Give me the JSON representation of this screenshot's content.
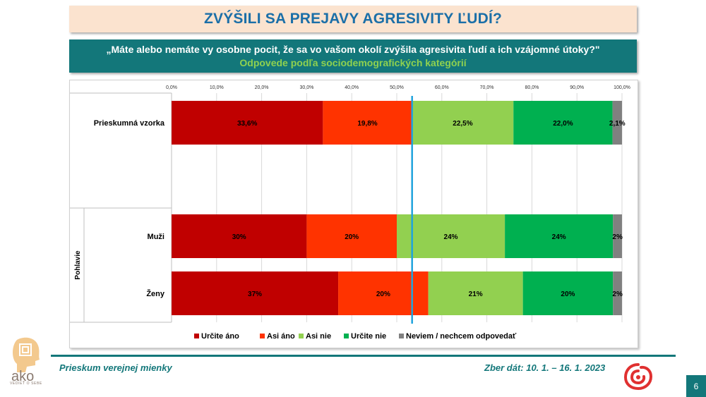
{
  "header": {
    "title": "ZVÝŠILI SA PREJAVY AGRESIVITY ĽUDÍ?",
    "question": "„Máte alebo nemáte vy osobne pocit, že sa vo vašom okolí zvýšila agresivita ľudí a ich vzájomné útoky?\"",
    "subtitle": "Odpovede podľa sociodemografických kategórií"
  },
  "chart_data": {
    "type": "bar",
    "orientation": "horizontal",
    "stacked": true,
    "xlim": [
      0,
      100
    ],
    "x_ticks": [
      "0,0%",
      "10,0%",
      "20,0%",
      "30,0%",
      "40,0%",
      "50,0%",
      "60,0%",
      "70,0%",
      "80,0%",
      "90,0%",
      "100,0%"
    ],
    "grid": true,
    "reference_line_at": 53.4,
    "group_label": "Pohlavie",
    "categories": [
      "Prieskumná vzorka",
      "Muži",
      "Ženy"
    ],
    "series": [
      {
        "name": "Určite áno",
        "color": "#c00000",
        "values": [
          33.6,
          30,
          37
        ],
        "labels": [
          "33,6%",
          "30%",
          "37%"
        ]
      },
      {
        "name": "Asi áno",
        "color": "#ff3300",
        "values": [
          19.8,
          20,
          20
        ],
        "labels": [
          "19,8%",
          "20%",
          "20%"
        ]
      },
      {
        "name": "Asi nie",
        "color": "#92d050",
        "values": [
          22.5,
          24,
          21
        ],
        "labels": [
          "22,5%",
          "24%",
          "21%"
        ]
      },
      {
        "name": "Určite nie",
        "color": "#00b050",
        "values": [
          22.0,
          24,
          20
        ],
        "labels": [
          "22,0%",
          "24%",
          "20%"
        ]
      },
      {
        "name": "Neviem / nechcem odpovedať",
        "color": "#808080",
        "values": [
          2.1,
          2,
          2
        ],
        "labels": [
          "2,1%",
          "2%",
          "2%"
        ]
      }
    ],
    "legend_position": "bottom"
  },
  "footer": {
    "left": "Prieskum verejnej mienky",
    "right": "Zber dát: 10. 1. – 16. 1. 2023",
    "page": "6",
    "logo_text": "ako",
    "logo_tagline": "VEDIEŤ O SEBE"
  },
  "colors": {
    "teal": "#13777a",
    "title_blue": "#1b6fa8",
    "title_bg": "#fbe3cf",
    "reference_line": "#1fa3dc"
  }
}
